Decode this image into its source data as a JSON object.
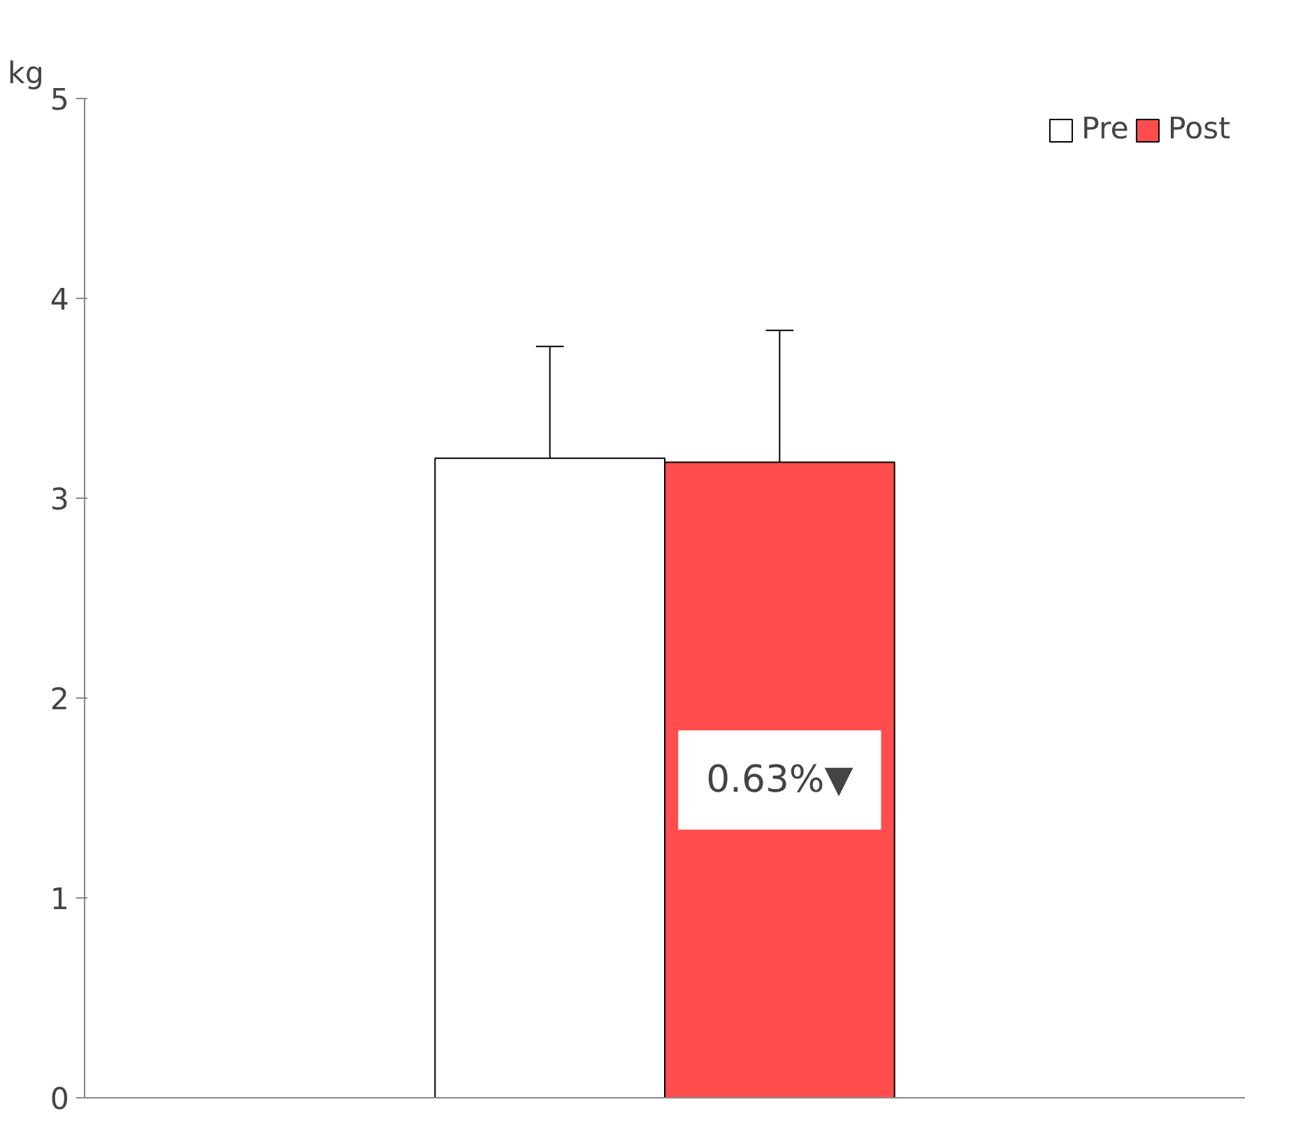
{
  "chart_data": {
    "type": "bar",
    "ylabel": "kg",
    "categories": [
      null
    ],
    "series": [
      {
        "name": "Pre",
        "color": "#ffffff",
        "values": [
          3.2
        ],
        "errors": [
          0.56
        ]
      },
      {
        "name": "Post",
        "color": "#ff4d4d",
        "values": [
          3.18
        ],
        "errors": [
          0.66
        ]
      }
    ],
    "ylim": [
      0,
      5
    ],
    "yticks": [
      0,
      1,
      2,
      3,
      4,
      5
    ],
    "grid": false,
    "legend": "top right",
    "tick_labels": "y",
    "annotations": [
      "0.63%▼"
    ]
  }
}
